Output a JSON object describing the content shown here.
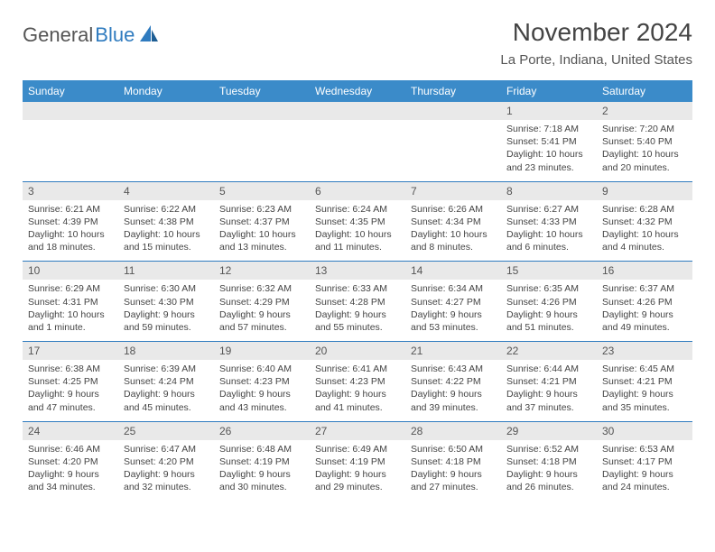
{
  "logo": {
    "general": "General",
    "blue": "Blue"
  },
  "title": "November 2024",
  "location": "La Porte, Indiana, United States",
  "colors": {
    "header_bg": "#3b8bc9",
    "header_text": "#ffffff",
    "daynum_bg": "#e9e9e9",
    "rule": "#2f7bbf",
    "body_text": "#444444",
    "logo_blue": "#2f7bbf"
  },
  "weekdays": [
    "Sunday",
    "Monday",
    "Tuesday",
    "Wednesday",
    "Thursday",
    "Friday",
    "Saturday"
  ],
  "weeks": [
    [
      {
        "num": "",
        "sunrise": "",
        "sunset": "",
        "daylight": ""
      },
      {
        "num": "",
        "sunrise": "",
        "sunset": "",
        "daylight": ""
      },
      {
        "num": "",
        "sunrise": "",
        "sunset": "",
        "daylight": ""
      },
      {
        "num": "",
        "sunrise": "",
        "sunset": "",
        "daylight": ""
      },
      {
        "num": "",
        "sunrise": "",
        "sunset": "",
        "daylight": ""
      },
      {
        "num": "1",
        "sunrise": "Sunrise: 7:18 AM",
        "sunset": "Sunset: 5:41 PM",
        "daylight": "Daylight: 10 hours and 23 minutes."
      },
      {
        "num": "2",
        "sunrise": "Sunrise: 7:20 AM",
        "sunset": "Sunset: 5:40 PM",
        "daylight": "Daylight: 10 hours and 20 minutes."
      }
    ],
    [
      {
        "num": "3",
        "sunrise": "Sunrise: 6:21 AM",
        "sunset": "Sunset: 4:39 PM",
        "daylight": "Daylight: 10 hours and 18 minutes."
      },
      {
        "num": "4",
        "sunrise": "Sunrise: 6:22 AM",
        "sunset": "Sunset: 4:38 PM",
        "daylight": "Daylight: 10 hours and 15 minutes."
      },
      {
        "num": "5",
        "sunrise": "Sunrise: 6:23 AM",
        "sunset": "Sunset: 4:37 PM",
        "daylight": "Daylight: 10 hours and 13 minutes."
      },
      {
        "num": "6",
        "sunrise": "Sunrise: 6:24 AM",
        "sunset": "Sunset: 4:35 PM",
        "daylight": "Daylight: 10 hours and 11 minutes."
      },
      {
        "num": "7",
        "sunrise": "Sunrise: 6:26 AM",
        "sunset": "Sunset: 4:34 PM",
        "daylight": "Daylight: 10 hours and 8 minutes."
      },
      {
        "num": "8",
        "sunrise": "Sunrise: 6:27 AM",
        "sunset": "Sunset: 4:33 PM",
        "daylight": "Daylight: 10 hours and 6 minutes."
      },
      {
        "num": "9",
        "sunrise": "Sunrise: 6:28 AM",
        "sunset": "Sunset: 4:32 PM",
        "daylight": "Daylight: 10 hours and 4 minutes."
      }
    ],
    [
      {
        "num": "10",
        "sunrise": "Sunrise: 6:29 AM",
        "sunset": "Sunset: 4:31 PM",
        "daylight": "Daylight: 10 hours and 1 minute."
      },
      {
        "num": "11",
        "sunrise": "Sunrise: 6:30 AM",
        "sunset": "Sunset: 4:30 PM",
        "daylight": "Daylight: 9 hours and 59 minutes."
      },
      {
        "num": "12",
        "sunrise": "Sunrise: 6:32 AM",
        "sunset": "Sunset: 4:29 PM",
        "daylight": "Daylight: 9 hours and 57 minutes."
      },
      {
        "num": "13",
        "sunrise": "Sunrise: 6:33 AM",
        "sunset": "Sunset: 4:28 PM",
        "daylight": "Daylight: 9 hours and 55 minutes."
      },
      {
        "num": "14",
        "sunrise": "Sunrise: 6:34 AM",
        "sunset": "Sunset: 4:27 PM",
        "daylight": "Daylight: 9 hours and 53 minutes."
      },
      {
        "num": "15",
        "sunrise": "Sunrise: 6:35 AM",
        "sunset": "Sunset: 4:26 PM",
        "daylight": "Daylight: 9 hours and 51 minutes."
      },
      {
        "num": "16",
        "sunrise": "Sunrise: 6:37 AM",
        "sunset": "Sunset: 4:26 PM",
        "daylight": "Daylight: 9 hours and 49 minutes."
      }
    ],
    [
      {
        "num": "17",
        "sunrise": "Sunrise: 6:38 AM",
        "sunset": "Sunset: 4:25 PM",
        "daylight": "Daylight: 9 hours and 47 minutes."
      },
      {
        "num": "18",
        "sunrise": "Sunrise: 6:39 AM",
        "sunset": "Sunset: 4:24 PM",
        "daylight": "Daylight: 9 hours and 45 minutes."
      },
      {
        "num": "19",
        "sunrise": "Sunrise: 6:40 AM",
        "sunset": "Sunset: 4:23 PM",
        "daylight": "Daylight: 9 hours and 43 minutes."
      },
      {
        "num": "20",
        "sunrise": "Sunrise: 6:41 AM",
        "sunset": "Sunset: 4:23 PM",
        "daylight": "Daylight: 9 hours and 41 minutes."
      },
      {
        "num": "21",
        "sunrise": "Sunrise: 6:43 AM",
        "sunset": "Sunset: 4:22 PM",
        "daylight": "Daylight: 9 hours and 39 minutes."
      },
      {
        "num": "22",
        "sunrise": "Sunrise: 6:44 AM",
        "sunset": "Sunset: 4:21 PM",
        "daylight": "Daylight: 9 hours and 37 minutes."
      },
      {
        "num": "23",
        "sunrise": "Sunrise: 6:45 AM",
        "sunset": "Sunset: 4:21 PM",
        "daylight": "Daylight: 9 hours and 35 minutes."
      }
    ],
    [
      {
        "num": "24",
        "sunrise": "Sunrise: 6:46 AM",
        "sunset": "Sunset: 4:20 PM",
        "daylight": "Daylight: 9 hours and 34 minutes."
      },
      {
        "num": "25",
        "sunrise": "Sunrise: 6:47 AM",
        "sunset": "Sunset: 4:20 PM",
        "daylight": "Daylight: 9 hours and 32 minutes."
      },
      {
        "num": "26",
        "sunrise": "Sunrise: 6:48 AM",
        "sunset": "Sunset: 4:19 PM",
        "daylight": "Daylight: 9 hours and 30 minutes."
      },
      {
        "num": "27",
        "sunrise": "Sunrise: 6:49 AM",
        "sunset": "Sunset: 4:19 PM",
        "daylight": "Daylight: 9 hours and 29 minutes."
      },
      {
        "num": "28",
        "sunrise": "Sunrise: 6:50 AM",
        "sunset": "Sunset: 4:18 PM",
        "daylight": "Daylight: 9 hours and 27 minutes."
      },
      {
        "num": "29",
        "sunrise": "Sunrise: 6:52 AM",
        "sunset": "Sunset: 4:18 PM",
        "daylight": "Daylight: 9 hours and 26 minutes."
      },
      {
        "num": "30",
        "sunrise": "Sunrise: 6:53 AM",
        "sunset": "Sunset: 4:17 PM",
        "daylight": "Daylight: 9 hours and 24 minutes."
      }
    ]
  ]
}
